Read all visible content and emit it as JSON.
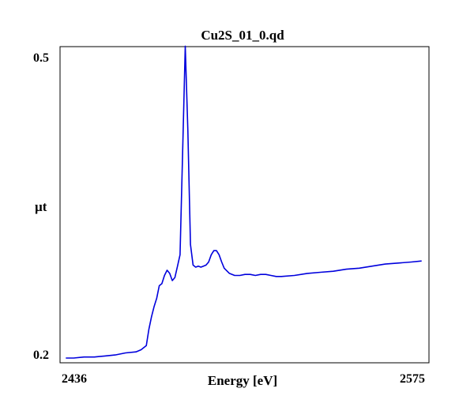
{
  "chart_data": {
    "type": "line",
    "title": "Cu2S_01_0.qd",
    "xlabel": "Energy [eV]",
    "ylabel": "µt",
    "xlim": [
      2436,
      2575
    ],
    "ylim": [
      0.2,
      0.5
    ],
    "x_tick_labels": [
      "2436",
      "2575"
    ],
    "y_tick_labels": [
      "0.5",
      "0.2"
    ],
    "grid": false,
    "legend": "none",
    "series": [
      {
        "color": "#0000dd",
        "x": [
          2437,
          2440,
          2444,
          2448,
          2452,
          2456,
          2460,
          2464,
          2466,
          2468,
          2469,
          2470,
          2471,
          2472,
          2473,
          2474,
          2475,
          2476,
          2477,
          2478,
          2479,
          2480,
          2481,
          2482,
          2483,
          2484,
          2485,
          2486,
          2487,
          2488,
          2489,
          2490,
          2491,
          2492,
          2493,
          2494,
          2495,
          2496,
          2497,
          2498,
          2500,
          2502,
          2504,
          2506,
          2508,
          2510,
          2512,
          2514,
          2516,
          2518,
          2520,
          2525,
          2530,
          2535,
          2540,
          2545,
          2550,
          2555,
          2560,
          2565,
          2570,
          2574
        ],
        "y": [
          0.2,
          0.2,
          0.201,
          0.201,
          0.202,
          0.203,
          0.205,
          0.206,
          0.208,
          0.212,
          0.228,
          0.24,
          0.25,
          0.258,
          0.27,
          0.272,
          0.28,
          0.285,
          0.282,
          0.275,
          0.278,
          0.289,
          0.3,
          0.4,
          0.502,
          0.42,
          0.31,
          0.29,
          0.288,
          0.289,
          0.288,
          0.289,
          0.29,
          0.293,
          0.3,
          0.304,
          0.304,
          0.3,
          0.293,
          0.287,
          0.282,
          0.28,
          0.28,
          0.281,
          0.281,
          0.28,
          0.281,
          0.281,
          0.28,
          0.279,
          0.279,
          0.28,
          0.282,
          0.283,
          0.284,
          0.286,
          0.287,
          0.289,
          0.291,
          0.292,
          0.293,
          0.294
        ]
      }
    ]
  }
}
